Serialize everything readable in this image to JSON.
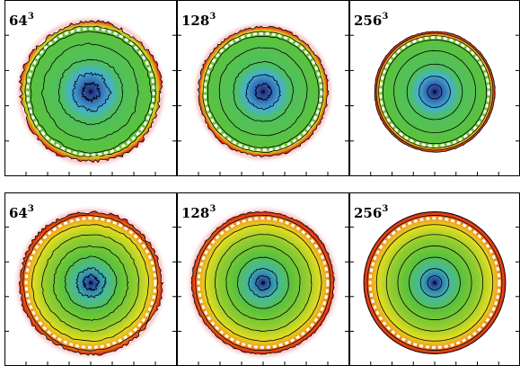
{
  "panels": [
    {
      "label": "64",
      "exponent": "3",
      "rim": "thick-red",
      "noise": 1.0
    },
    {
      "label": "128",
      "exponent": "3",
      "rim": "thin-red",
      "noise": 0.55
    },
    {
      "label": "256",
      "exponent": "3",
      "rim": "thin-white",
      "noise": 0.15
    },
    {
      "label": "64",
      "exponent": "3",
      "rim": "wide-yellow",
      "noise": 0.8
    },
    {
      "label": "128",
      "exponent": "3",
      "rim": "wide-yellow",
      "noise": 0.35
    },
    {
      "label": "256",
      "exponent": "3",
      "rim": "wide-yellow",
      "noise": 0.05
    }
  ],
  "colors": {
    "center": "#2a2a7a",
    "inner": "#3fa0d8",
    "mid": "#4fbf48",
    "green": "#5cc23a",
    "yellow": "#d8d820",
    "orange": "#f08020",
    "red": "#d82010",
    "contour": "#000000",
    "dash": "#ffffff"
  }
}
